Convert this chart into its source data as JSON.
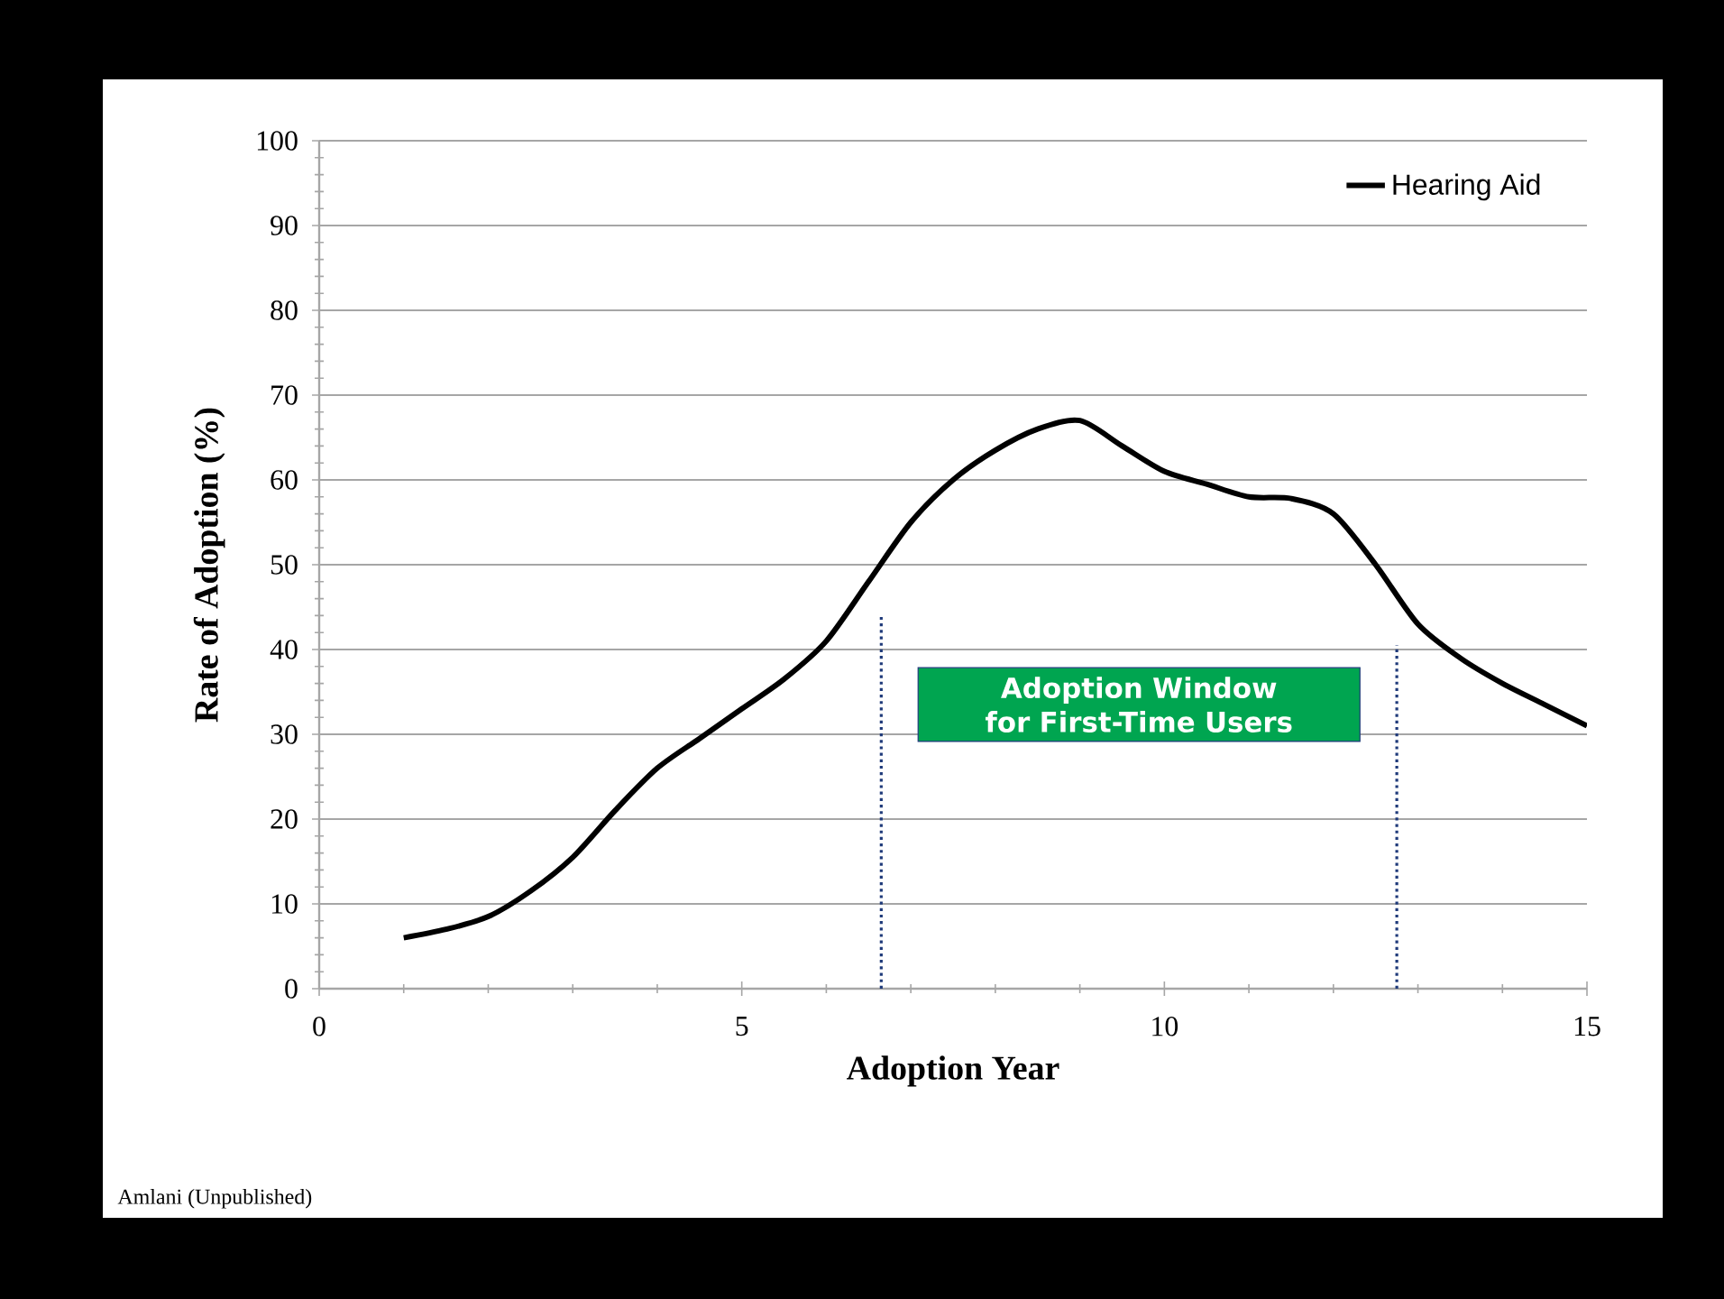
{
  "chart_data": {
    "type": "line",
    "xlabel": "Adoption Year",
    "ylabel": "Rate of Adoption (%)",
    "x": [
      1,
      1.5,
      2,
      2.5,
      3,
      3.5,
      4,
      4.5,
      5,
      5.5,
      6,
      6.5,
      7,
      7.5,
      8,
      8.5,
      9,
      9.5,
      10,
      10.5,
      11,
      11.5,
      12,
      12.5,
      13,
      13.5,
      14,
      14.5,
      15
    ],
    "series": [
      {
        "name": "Hearing Aid",
        "color": "#000000",
        "values": [
          6,
          7,
          8.5,
          11.5,
          15.5,
          21,
          26,
          29.5,
          33,
          36.5,
          41,
          48,
          55,
          60,
          63.5,
          66,
          67,
          64,
          61,
          59.5,
          58,
          57.8,
          56,
          50,
          43,
          39,
          36,
          33.5,
          31
        ]
      }
    ],
    "xlim": [
      0,
      15
    ],
    "xticks": [
      0,
      5,
      10,
      15
    ],
    "ylim": [
      0,
      100
    ],
    "yticks": [
      0,
      10,
      20,
      30,
      40,
      50,
      60,
      70,
      80,
      90,
      100
    ],
    "grid": "y",
    "legend": "top right",
    "marker": "none",
    "line_style": "solid",
    "ref_lines": [
      {
        "axis": "x",
        "value": 6.65,
        "color": "#1f3a7a",
        "line_style": "dotted"
      },
      {
        "axis": "x",
        "value": 12.75,
        "color": "#1f3a7a",
        "line_style": "dotted"
      }
    ],
    "annotations": [
      "Adoption Window for First-Time Users",
      "Amlani (Unpublished)"
    ]
  }
}
